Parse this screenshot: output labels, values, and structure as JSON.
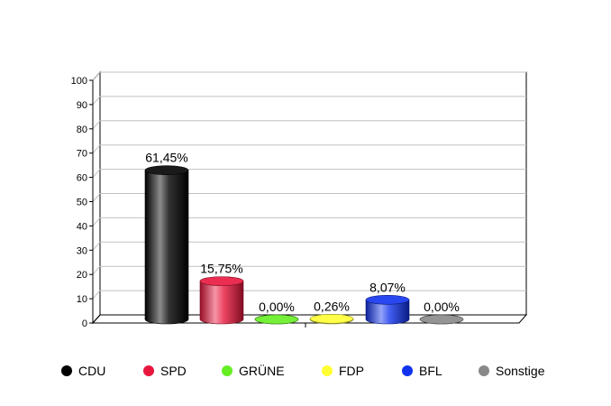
{
  "chart_data": {
    "type": "bar",
    "categories": [
      "CDU",
      "SPD",
      "GRÜNE",
      "FDP",
      "BFL",
      "Sonstige"
    ],
    "values": [
      61.45,
      15.75,
      0.0,
      0.26,
      8.07,
      0.0
    ],
    "data_labels": [
      "61,45%",
      "15,75%",
      "0,00%",
      "0,26%",
      "8,07%",
      "0,00%"
    ],
    "colors": [
      "#000000",
      "#e8163c",
      "#66ee22",
      "#ffff33",
      "#1133ee",
      "#888888"
    ],
    "ylim": [
      0,
      100
    ],
    "yticks": [
      "0",
      "10",
      "20",
      "30",
      "40",
      "50",
      "60",
      "70",
      "80",
      "90",
      "100"
    ],
    "grid": true,
    "legend_position": "bottom",
    "style": "3d-cylinder"
  }
}
